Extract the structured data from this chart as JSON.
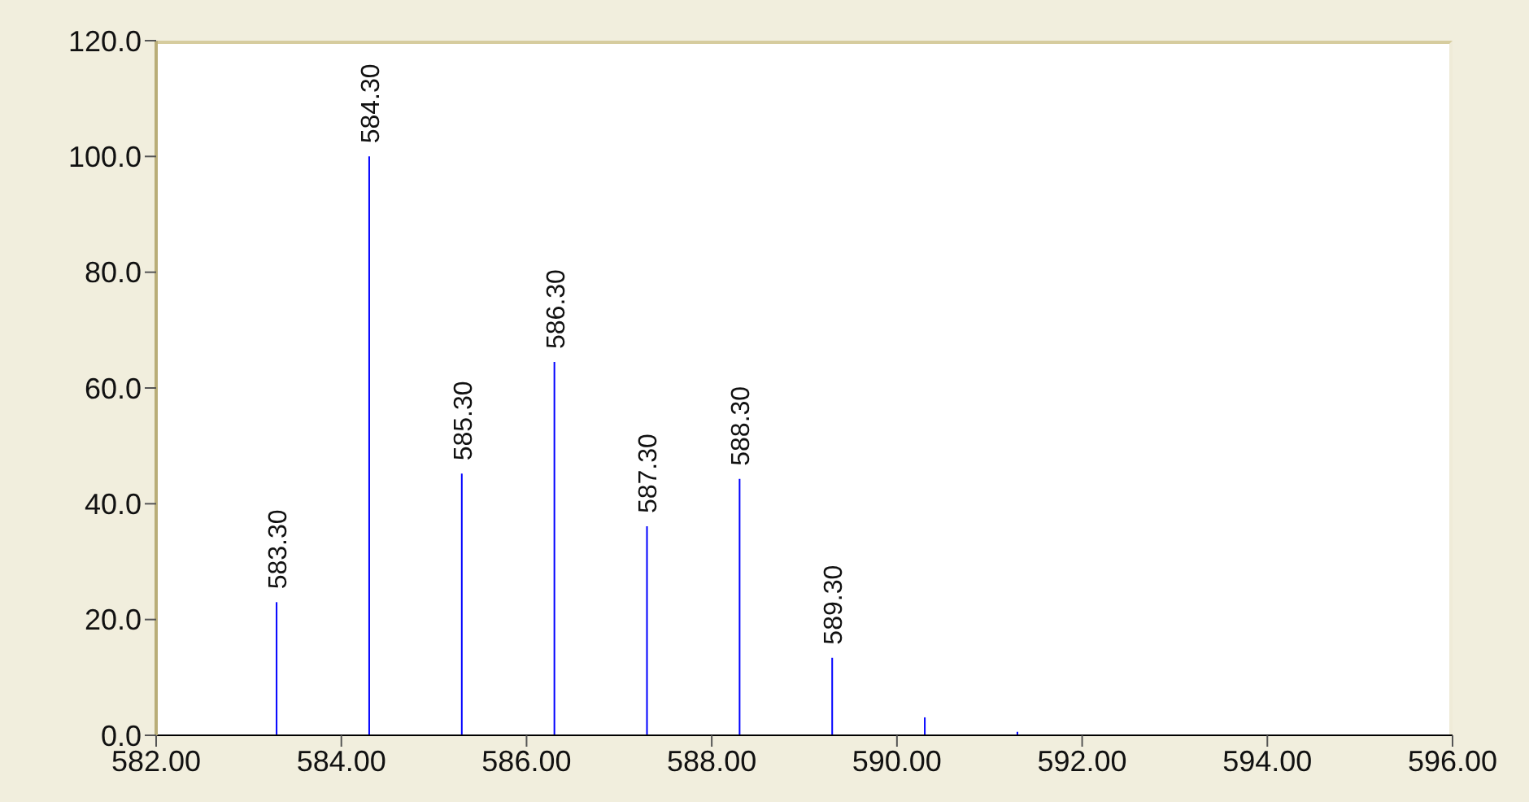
{
  "chart_data": {
    "type": "bar",
    "x": [
      583.3,
      584.3,
      585.3,
      586.3,
      587.3,
      588.3,
      589.3,
      590.3,
      591.3
    ],
    "values": [
      23.0,
      100.0,
      45.2,
      64.5,
      36.1,
      44.3,
      13.4,
      3.1,
      0.6
    ],
    "color": "#0000ff",
    "xlim": [
      582,
      596
    ],
    "xticks": [
      {
        "value": 582,
        "label": "582.00"
      },
      {
        "value": 584,
        "label": "584.00"
      },
      {
        "value": 586,
        "label": "586.00"
      },
      {
        "value": 588,
        "label": "588.00"
      },
      {
        "value": 590,
        "label": "590.00"
      },
      {
        "value": 592,
        "label": "592.00"
      },
      {
        "value": 594,
        "label": "594.00"
      },
      {
        "value": 596,
        "label": "596.00"
      }
    ],
    "ylim": [
      0,
      120
    ],
    "yticks": [
      {
        "value": 0,
        "label": "0.0"
      },
      {
        "value": 20,
        "label": "20.0"
      },
      {
        "value": 40,
        "label": "40.0"
      },
      {
        "value": 60,
        "label": "60.0"
      },
      {
        "value": 80,
        "label": "80.0"
      },
      {
        "value": 100,
        "label": "100.0"
      },
      {
        "value": 120,
        "label": "120.0"
      }
    ],
    "annotations": [
      {
        "text": "583.30",
        "x": 583.3,
        "y": 23.0
      },
      {
        "text": "584.30",
        "x": 584.3,
        "y": 100.0
      },
      {
        "text": "585.30",
        "x": 585.3,
        "y": 45.2
      },
      {
        "text": "586.30",
        "x": 586.3,
        "y": 64.5
      },
      {
        "text": "587.30",
        "x": 587.3,
        "y": 36.1
      },
      {
        "text": "588.30",
        "x": 588.3,
        "y": 44.3
      },
      {
        "text": "589.30",
        "x": 589.3,
        "y": 13.4
      }
    ],
    "grid": false,
    "legend": false
  }
}
